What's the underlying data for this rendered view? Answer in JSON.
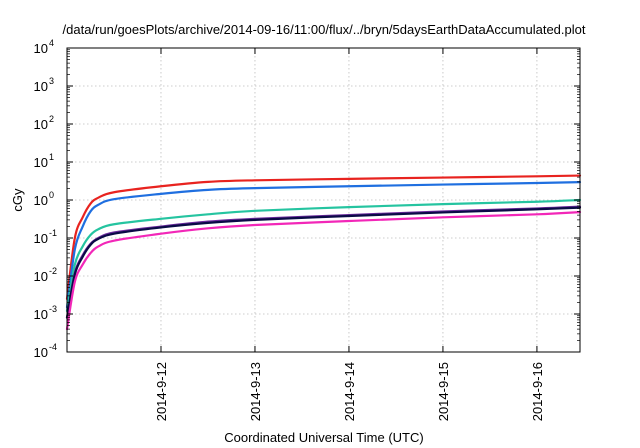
{
  "chart_data": {
    "type": "line",
    "title": "/data/run/goesPlots/archive/2014-09-16/11:00/flux/../bryn/5daysEarthDataAccumulated.plot",
    "xlabel": "Coordinated Universal Time (UTC)",
    "ylabel": "cGy",
    "y_scale": "log",
    "ylim": [
      0.0001,
      10000
    ],
    "xlim": [
      "2014-09-11 00:00",
      "2014-09-16 11:00"
    ],
    "y_ticks": [
      {
        "base": "10",
        "exp": "-4"
      },
      {
        "base": "10",
        "exp": "-3"
      },
      {
        "base": "10",
        "exp": "-2"
      },
      {
        "base": "10",
        "exp": "-1"
      },
      {
        "base": "10",
        "exp": "0"
      },
      {
        "base": "10",
        "exp": "1"
      },
      {
        "base": "10",
        "exp": "2"
      },
      {
        "base": "10",
        "exp": "3"
      },
      {
        "base": "10",
        "exp": "4"
      }
    ],
    "x_ticks": [
      "2014-9-12",
      "2014-9-13",
      "2014-9-14",
      "2014-9-15",
      "2014-9-16"
    ],
    "grid": true,
    "legend": "none",
    "series": [
      {
        "color": "#e8231f",
        "x": [
          "2014-09-11 00:00",
          "2014-09-11 02:00",
          "2014-09-11 04:00",
          "2014-09-11 06:00",
          "2014-09-11 08:00",
          "2014-09-11 12:00",
          "2014-09-12 00:00",
          "2014-09-12 12:00",
          "2014-09-13 00:00",
          "2014-09-14 00:00",
          "2014-09-15 00:00",
          "2014-09-16 00:00",
          "2014-09-16 11:00"
        ],
        "values": [
          0.0025,
          0.1,
          0.35,
          0.8,
          1.15,
          1.6,
          2.3,
          3.0,
          3.3,
          3.6,
          3.9,
          4.2,
          4.4
        ]
      },
      {
        "color": "#1f6fe0",
        "x": [
          "2014-09-11 00:00",
          "2014-09-11 02:00",
          "2014-09-11 04:00",
          "2014-09-11 06:00",
          "2014-09-11 08:00",
          "2014-09-11 12:00",
          "2014-09-12 00:00",
          "2014-09-12 12:00",
          "2014-09-13 00:00",
          "2014-09-14 00:00",
          "2014-09-15 00:00",
          "2014-09-16 00:00",
          "2014-09-16 11:00"
        ],
        "values": [
          0.0015,
          0.05,
          0.2,
          0.5,
          0.75,
          1.05,
          1.45,
          1.85,
          2.05,
          2.3,
          2.55,
          2.8,
          2.95
        ]
      },
      {
        "color": "#25c4a0",
        "x": [
          "2014-09-11 00:00",
          "2014-09-11 02:00",
          "2014-09-11 04:00",
          "2014-09-11 06:00",
          "2014-09-11 08:00",
          "2014-09-11 12:00",
          "2014-09-12 00:00",
          "2014-09-12 12:00",
          "2014-09-13 00:00",
          "2014-09-14 00:00",
          "2014-09-15 00:00",
          "2014-09-16 00:00",
          "2014-09-16 11:00"
        ],
        "values": [
          0.0012,
          0.02,
          0.06,
          0.12,
          0.17,
          0.23,
          0.32,
          0.42,
          0.52,
          0.65,
          0.78,
          0.9,
          1.0
        ]
      },
      {
        "color": "#6a2a9c",
        "x": [
          "2014-09-11 00:00",
          "2014-09-11 02:00",
          "2014-09-11 04:00",
          "2014-09-11 06:00",
          "2014-09-11 08:00",
          "2014-09-11 12:00",
          "2014-09-12 00:00",
          "2014-09-12 12:00",
          "2014-09-13 00:00",
          "2014-09-14 00:00",
          "2014-09-15 00:00",
          "2014-09-16 00:00",
          "2014-09-16 11:00"
        ],
        "values": [
          0.0008,
          0.012,
          0.035,
          0.07,
          0.1,
          0.14,
          0.2,
          0.27,
          0.32,
          0.4,
          0.5,
          0.6,
          0.67
        ]
      },
      {
        "color": "#0a0a46",
        "x": [
          "2014-09-11 00:00",
          "2014-09-11 02:00",
          "2014-09-11 04:00",
          "2014-09-11 06:00",
          "2014-09-11 08:00",
          "2014-09-11 12:00",
          "2014-09-12 00:00",
          "2014-09-12 12:00",
          "2014-09-13 00:00",
          "2014-09-14 00:00",
          "2014-09-15 00:00",
          "2014-09-16 00:00",
          "2014-09-16 11:00"
        ],
        "values": [
          0.0008,
          0.011,
          0.032,
          0.066,
          0.095,
          0.13,
          0.19,
          0.25,
          0.3,
          0.38,
          0.47,
          0.57,
          0.63
        ]
      },
      {
        "color": "#f227b8",
        "x": [
          "2014-09-11 00:00",
          "2014-09-11 02:00",
          "2014-09-11 04:00",
          "2014-09-11 06:00",
          "2014-09-11 08:00",
          "2014-09-11 12:00",
          "2014-09-12 00:00",
          "2014-09-12 12:00",
          "2014-09-13 00:00",
          "2014-09-14 00:00",
          "2014-09-15 00:00",
          "2014-09-16 00:00",
          "2014-09-16 11:00"
        ],
        "values": [
          0.0004,
          0.007,
          0.02,
          0.04,
          0.06,
          0.085,
          0.13,
          0.18,
          0.22,
          0.28,
          0.35,
          0.42,
          0.48
        ]
      }
    ]
  }
}
